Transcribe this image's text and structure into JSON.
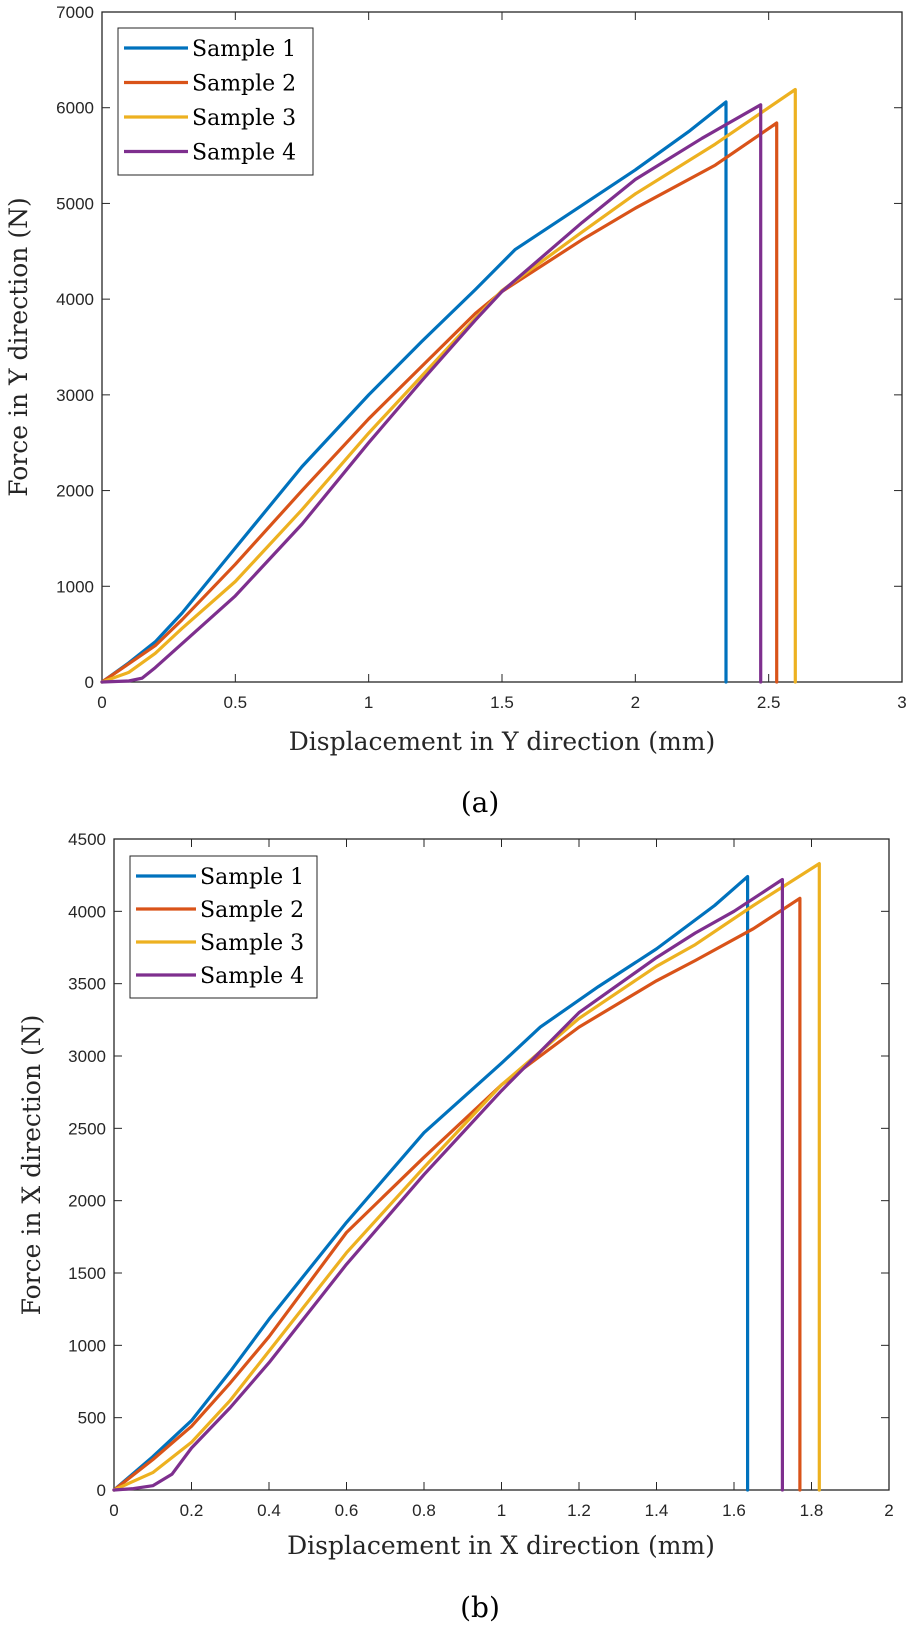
{
  "chart_data": [
    {
      "type": "line",
      "caption": "(a)",
      "xlabel": "Displacement in Y direction (mm)",
      "ylabel": "Force in Y direction (N)",
      "xlim": [
        0,
        3
      ],
      "ylim": [
        0,
        7000
      ],
      "xticks": [
        0,
        0.5,
        1,
        1.5,
        2,
        2.5,
        3
      ],
      "xtick_labels": [
        "0",
        "0.5",
        "1",
        "1.5",
        "2",
        "2.5",
        "3"
      ],
      "yticks": [
        0,
        1000,
        2000,
        3000,
        4000,
        5000,
        6000,
        7000
      ],
      "ytick_labels": [
        "0",
        "1000",
        "2000",
        "3000",
        "4000",
        "5000",
        "6000",
        "7000"
      ],
      "grid": false,
      "legend_position": "top-left",
      "series": [
        {
          "name": "Sample 1",
          "color": "#0072BD",
          "x": [
            0,
            0.1,
            0.2,
            0.3,
            0.5,
            0.75,
            1.0,
            1.2,
            1.4,
            1.55,
            1.8,
            2.0,
            2.2,
            2.34,
            2.34
          ],
          "y": [
            0,
            200,
            420,
            720,
            1400,
            2250,
            3000,
            3560,
            4100,
            4520,
            4980,
            5350,
            5750,
            6060,
            0
          ]
        },
        {
          "name": "Sample 2",
          "color": "#D95319",
          "x": [
            0,
            0.1,
            0.2,
            0.3,
            0.5,
            0.75,
            1.0,
            1.2,
            1.4,
            1.5,
            1.8,
            2.0,
            2.3,
            2.53,
            2.53
          ],
          "y": [
            0,
            190,
            380,
            650,
            1230,
            2000,
            2750,
            3300,
            3850,
            4080,
            4620,
            4950,
            5400,
            5840,
            0
          ]
        },
        {
          "name": "Sample 3",
          "color": "#EDB120",
          "x": [
            0,
            0.1,
            0.2,
            0.3,
            0.5,
            0.75,
            1.0,
            1.2,
            1.4,
            1.5,
            1.8,
            2.0,
            2.3,
            2.6,
            2.6
          ],
          "y": [
            0,
            100,
            300,
            560,
            1050,
            1800,
            2600,
            3200,
            3800,
            4090,
            4700,
            5100,
            5620,
            6190,
            0
          ]
        },
        {
          "name": "Sample 4",
          "color": "#7E2F8E",
          "x": [
            0,
            0.1,
            0.15,
            0.2,
            0.3,
            0.5,
            0.75,
            1.0,
            1.2,
            1.4,
            1.5,
            1.8,
            2.0,
            2.25,
            2.47,
            2.47
          ],
          "y": [
            0,
            10,
            40,
            150,
            400,
            900,
            1650,
            2500,
            3150,
            3780,
            4080,
            4800,
            5250,
            5680,
            6030,
            0
          ]
        }
      ]
    },
    {
      "type": "line",
      "caption": "(b)",
      "xlabel": "Displacement in X direction (mm)",
      "ylabel": "Force in X direction (N)",
      "xlim": [
        0,
        2
      ],
      "ylim": [
        0,
        4500
      ],
      "xticks": [
        0,
        0.2,
        0.4,
        0.6,
        0.8,
        1,
        1.2,
        1.4,
        1.6,
        1.8,
        2
      ],
      "xtick_labels": [
        "0",
        "0.2",
        "0.4",
        "0.6",
        "0.8",
        "1",
        "1.2",
        "1.4",
        "1.6",
        "1.8",
        "2"
      ],
      "yticks": [
        0,
        500,
        1000,
        1500,
        2000,
        2500,
        3000,
        3500,
        4000,
        4500
      ],
      "ytick_labels": [
        "0",
        "500",
        "1000",
        "1500",
        "2000",
        "2500",
        "3000",
        "3500",
        "4000",
        "4500"
      ],
      "grid": false,
      "legend_position": "top-left",
      "series": [
        {
          "name": "Sample 1",
          "color": "#0072BD",
          "x": [
            0,
            0.1,
            0.2,
            0.3,
            0.4,
            0.6,
            0.8,
            1.0,
            1.1,
            1.25,
            1.4,
            1.55,
            1.635,
            1.635
          ],
          "y": [
            0,
            230,
            480,
            820,
            1180,
            1850,
            2470,
            2950,
            3200,
            3480,
            3740,
            4040,
            4240,
            0
          ]
        },
        {
          "name": "Sample 2",
          "color": "#D95319",
          "x": [
            0,
            0.1,
            0.2,
            0.3,
            0.4,
            0.6,
            0.8,
            1.0,
            1.2,
            1.4,
            1.5,
            1.65,
            1.77,
            1.77
          ],
          "y": [
            0,
            210,
            440,
            740,
            1060,
            1780,
            2300,
            2800,
            3200,
            3520,
            3660,
            3880,
            4090,
            0
          ]
        },
        {
          "name": "Sample 3",
          "color": "#EDB120",
          "x": [
            0,
            0.1,
            0.2,
            0.3,
            0.4,
            0.6,
            0.8,
            1.0,
            1.2,
            1.4,
            1.5,
            1.65,
            1.82,
            1.82
          ],
          "y": [
            0,
            120,
            330,
            620,
            960,
            1640,
            2230,
            2800,
            3260,
            3620,
            3770,
            4040,
            4330,
            0
          ]
        },
        {
          "name": "Sample 4",
          "color": "#7E2F8E",
          "x": [
            0,
            0.05,
            0.1,
            0.15,
            0.2,
            0.3,
            0.4,
            0.6,
            0.8,
            1.0,
            1.2,
            1.4,
            1.5,
            1.6,
            1.725,
            1.725
          ],
          "y": [
            0,
            10,
            30,
            110,
            290,
            570,
            880,
            1560,
            2180,
            2760,
            3300,
            3680,
            3850,
            4000,
            4220,
            0
          ]
        }
      ]
    }
  ]
}
